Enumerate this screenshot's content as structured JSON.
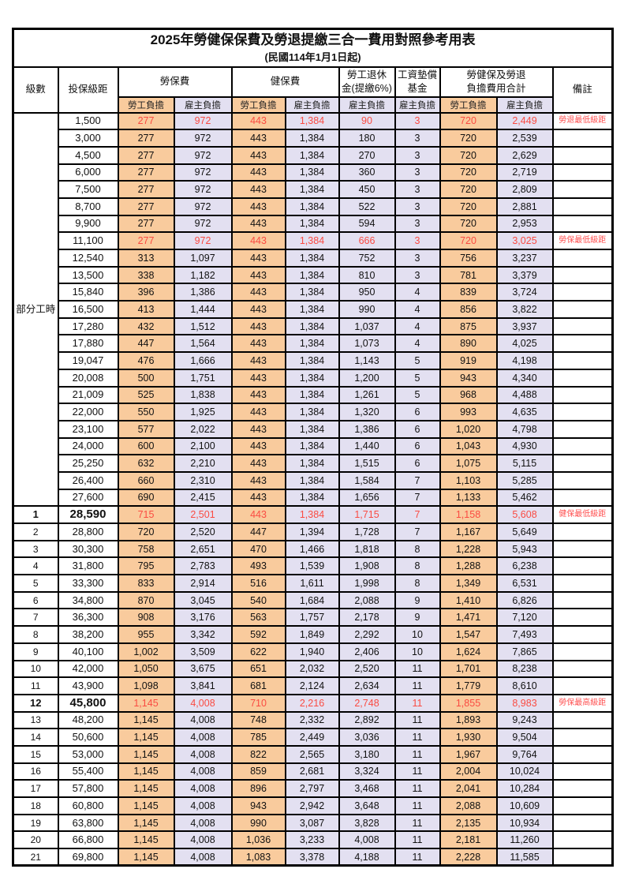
{
  "title": "2025年勞健保保費及勞退提繳三合一費用對照參考用表",
  "subtitle": "(民國114年1月1日起)",
  "columns": {
    "level": "級數",
    "bracket": "投保級距",
    "labor_insurance": "勞保費",
    "health_insurance": "健保費",
    "pension_line1": "勞工退休",
    "pension_line2": "金(提繳6%)",
    "wage_fund_line1": "工資墊償",
    "wage_fund_line2": "基金",
    "total_line1": "勞健保及勞退",
    "total_line2": "負擔費用合計",
    "remark": "備註",
    "employee_share": "勞工負擔",
    "employer_share": "雇主負擔"
  },
  "part_time_label": "部分工時",
  "part_time_rowspan": 23,
  "colors": {
    "employee_bg": "#F9CB9D",
    "employer_bg": "#E3E0F1",
    "highlight_red": "#FA4B42",
    "remark_red": "#FF5050",
    "border": "#000000"
  },
  "rows": [
    {
      "level": "",
      "bracket": "1,500",
      "values": [
        "277",
        "972",
        "443",
        "1,384",
        "90",
        "3",
        "720",
        "2,449"
      ],
      "remark": "勞退最低級距",
      "red": true
    },
    {
      "level": "",
      "bracket": "3,000",
      "values": [
        "277",
        "972",
        "443",
        "1,384",
        "180",
        "3",
        "720",
        "2,539"
      ],
      "remark": ""
    },
    {
      "level": "",
      "bracket": "4,500",
      "values": [
        "277",
        "972",
        "443",
        "1,384",
        "270",
        "3",
        "720",
        "2,629"
      ],
      "remark": ""
    },
    {
      "level": "",
      "bracket": "6,000",
      "values": [
        "277",
        "972",
        "443",
        "1,384",
        "360",
        "3",
        "720",
        "2,719"
      ],
      "remark": ""
    },
    {
      "level": "",
      "bracket": "7,500",
      "values": [
        "277",
        "972",
        "443",
        "1,384",
        "450",
        "3",
        "720",
        "2,809"
      ],
      "remark": ""
    },
    {
      "level": "",
      "bracket": "8,700",
      "values": [
        "277",
        "972",
        "443",
        "1,384",
        "522",
        "3",
        "720",
        "2,881"
      ],
      "remark": ""
    },
    {
      "level": "",
      "bracket": "9,900",
      "values": [
        "277",
        "972",
        "443",
        "1,384",
        "594",
        "3",
        "720",
        "2,953"
      ],
      "remark": ""
    },
    {
      "level": "",
      "bracket": "11,100",
      "values": [
        "277",
        "972",
        "443",
        "1,384",
        "666",
        "3",
        "720",
        "3,025"
      ],
      "remark": "勞保最低級距",
      "red": true
    },
    {
      "level": "",
      "bracket": "12,540",
      "values": [
        "313",
        "1,097",
        "443",
        "1,384",
        "752",
        "3",
        "756",
        "3,237"
      ],
      "remark": ""
    },
    {
      "level": "",
      "bracket": "13,500",
      "values": [
        "338",
        "1,182",
        "443",
        "1,384",
        "810",
        "3",
        "781",
        "3,379"
      ],
      "remark": ""
    },
    {
      "level": "",
      "bracket": "15,840",
      "values": [
        "396",
        "1,386",
        "443",
        "1,384",
        "950",
        "4",
        "839",
        "3,724"
      ],
      "remark": ""
    },
    {
      "level": "",
      "bracket": "16,500",
      "values": [
        "413",
        "1,444",
        "443",
        "1,384",
        "990",
        "4",
        "856",
        "3,822"
      ],
      "remark": ""
    },
    {
      "level": "",
      "bracket": "17,280",
      "values": [
        "432",
        "1,512",
        "443",
        "1,384",
        "1,037",
        "4",
        "875",
        "3,937"
      ],
      "remark": ""
    },
    {
      "level": "",
      "bracket": "17,880",
      "values": [
        "447",
        "1,564",
        "443",
        "1,384",
        "1,073",
        "4",
        "890",
        "4,025"
      ],
      "remark": ""
    },
    {
      "level": "",
      "bracket": "19,047",
      "values": [
        "476",
        "1,666",
        "443",
        "1,384",
        "1,143",
        "5",
        "919",
        "4,198"
      ],
      "remark": ""
    },
    {
      "level": "",
      "bracket": "20,008",
      "values": [
        "500",
        "1,751",
        "443",
        "1,384",
        "1,200",
        "5",
        "943",
        "4,340"
      ],
      "remark": ""
    },
    {
      "level": "",
      "bracket": "21,009",
      "values": [
        "525",
        "1,838",
        "443",
        "1,384",
        "1,261",
        "5",
        "968",
        "4,488"
      ],
      "remark": ""
    },
    {
      "level": "",
      "bracket": "22,000",
      "values": [
        "550",
        "1,925",
        "443",
        "1,384",
        "1,320",
        "6",
        "993",
        "4,635"
      ],
      "remark": ""
    },
    {
      "level": "",
      "bracket": "23,100",
      "values": [
        "577",
        "2,022",
        "443",
        "1,384",
        "1,386",
        "6",
        "1,020",
        "4,798"
      ],
      "remark": ""
    },
    {
      "level": "",
      "bracket": "24,000",
      "values": [
        "600",
        "2,100",
        "443",
        "1,384",
        "1,440",
        "6",
        "1,043",
        "4,930"
      ],
      "remark": ""
    },
    {
      "level": "",
      "bracket": "25,250",
      "values": [
        "632",
        "2,210",
        "443",
        "1,384",
        "1,515",
        "6",
        "1,075",
        "5,115"
      ],
      "remark": ""
    },
    {
      "level": "",
      "bracket": "26,400",
      "values": [
        "660",
        "2,310",
        "443",
        "1,384",
        "1,584",
        "7",
        "1,103",
        "5,285"
      ],
      "remark": ""
    },
    {
      "level": "",
      "bracket": "27,600",
      "values": [
        "690",
        "2,415",
        "443",
        "1,384",
        "1,656",
        "7",
        "1,133",
        "5,462"
      ],
      "remark": ""
    },
    {
      "level": "1",
      "bracket": "28,590",
      "values": [
        "715",
        "2,501",
        "443",
        "1,384",
        "1,715",
        "7",
        "1,158",
        "5,608"
      ],
      "remark": "健保最低級距",
      "red": true,
      "bold": true
    },
    {
      "level": "2",
      "bracket": "28,800",
      "values": [
        "720",
        "2,520",
        "447",
        "1,394",
        "1,728",
        "7",
        "1,167",
        "5,649"
      ],
      "remark": ""
    },
    {
      "level": "3",
      "bracket": "30,300",
      "values": [
        "758",
        "2,651",
        "470",
        "1,466",
        "1,818",
        "8",
        "1,228",
        "5,943"
      ],
      "remark": ""
    },
    {
      "level": "4",
      "bracket": "31,800",
      "values": [
        "795",
        "2,783",
        "493",
        "1,539",
        "1,908",
        "8",
        "1,288",
        "6,238"
      ],
      "remark": ""
    },
    {
      "level": "5",
      "bracket": "33,300",
      "values": [
        "833",
        "2,914",
        "516",
        "1,611",
        "1,998",
        "8",
        "1,349",
        "6,531"
      ],
      "remark": ""
    },
    {
      "level": "6",
      "bracket": "34,800",
      "values": [
        "870",
        "3,045",
        "540",
        "1,684",
        "2,088",
        "9",
        "1,410",
        "6,826"
      ],
      "remark": ""
    },
    {
      "level": "7",
      "bracket": "36,300",
      "values": [
        "908",
        "3,176",
        "563",
        "1,757",
        "2,178",
        "9",
        "1,471",
        "7,120"
      ],
      "remark": ""
    },
    {
      "level": "8",
      "bracket": "38,200",
      "values": [
        "955",
        "3,342",
        "592",
        "1,849",
        "2,292",
        "10",
        "1,547",
        "7,493"
      ],
      "remark": ""
    },
    {
      "level": "9",
      "bracket": "40,100",
      "values": [
        "1,002",
        "3,509",
        "622",
        "1,940",
        "2,406",
        "10",
        "1,624",
        "7,865"
      ],
      "remark": ""
    },
    {
      "level": "10",
      "bracket": "42,000",
      "values": [
        "1,050",
        "3,675",
        "651",
        "2,032",
        "2,520",
        "11",
        "1,701",
        "8,238"
      ],
      "remark": ""
    },
    {
      "level": "11",
      "bracket": "43,900",
      "values": [
        "1,098",
        "3,841",
        "681",
        "2,124",
        "2,634",
        "11",
        "1,779",
        "8,610"
      ],
      "remark": ""
    },
    {
      "level": "12",
      "bracket": "45,800",
      "values": [
        "1,145",
        "4,008",
        "710",
        "2,216",
        "2,748",
        "11",
        "1,855",
        "8,983"
      ],
      "remark": "勞保最高級距",
      "red": true,
      "bold": true
    },
    {
      "level": "13",
      "bracket": "48,200",
      "values": [
        "1,145",
        "4,008",
        "748",
        "2,332",
        "2,892",
        "11",
        "1,893",
        "9,243"
      ],
      "remark": ""
    },
    {
      "level": "14",
      "bracket": "50,600",
      "values": [
        "1,145",
        "4,008",
        "785",
        "2,449",
        "3,036",
        "11",
        "1,930",
        "9,504"
      ],
      "remark": ""
    },
    {
      "level": "15",
      "bracket": "53,000",
      "values": [
        "1,145",
        "4,008",
        "822",
        "2,565",
        "3,180",
        "11",
        "1,967",
        "9,764"
      ],
      "remark": ""
    },
    {
      "level": "16",
      "bracket": "55,400",
      "values": [
        "1,145",
        "4,008",
        "859",
        "2,681",
        "3,324",
        "11",
        "2,004",
        "10,024"
      ],
      "remark": ""
    },
    {
      "level": "17",
      "bracket": "57,800",
      "values": [
        "1,145",
        "4,008",
        "896",
        "2,797",
        "3,468",
        "11",
        "2,041",
        "10,284"
      ],
      "remark": ""
    },
    {
      "level": "18",
      "bracket": "60,800",
      "values": [
        "1,145",
        "4,008",
        "943",
        "2,942",
        "3,648",
        "11",
        "2,088",
        "10,609"
      ],
      "remark": ""
    },
    {
      "level": "19",
      "bracket": "63,800",
      "values": [
        "1,145",
        "4,008",
        "990",
        "3,087",
        "3,828",
        "11",
        "2,135",
        "10,934"
      ],
      "remark": ""
    },
    {
      "level": "20",
      "bracket": "66,800",
      "values": [
        "1,145",
        "4,008",
        "1,036",
        "3,233",
        "4,008",
        "11",
        "2,181",
        "11,260"
      ],
      "remark": ""
    },
    {
      "level": "21",
      "bracket": "69,800",
      "values": [
        "1,145",
        "4,008",
        "1,083",
        "3,378",
        "4,188",
        "11",
        "2,228",
        "11,585"
      ],
      "remark": ""
    }
  ]
}
